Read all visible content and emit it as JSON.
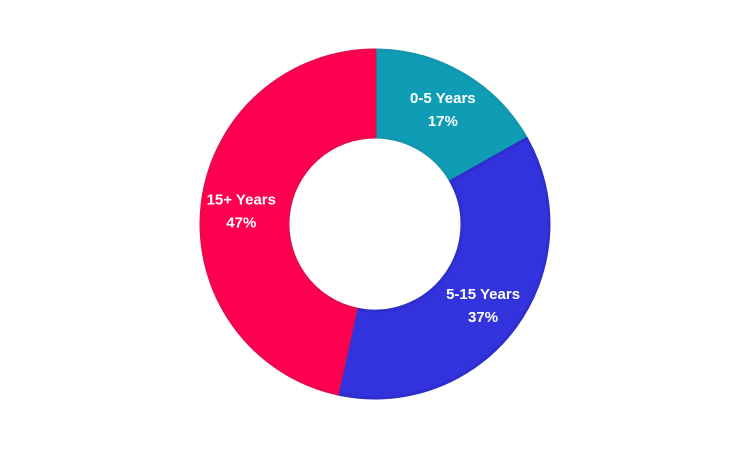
{
  "chart_data": {
    "type": "pie",
    "donut": true,
    "start_angle_deg": 0,
    "direction": "clockwise",
    "slices": [
      {
        "label": "0-5 Years",
        "value": 17,
        "value_label": "17%",
        "color": "#0E9DB5",
        "stroke": "#1496AE"
      },
      {
        "label": "5-15 Years",
        "value": 37,
        "value_label": "37%",
        "color": "#3333DD",
        "stroke": "#2E2ECC"
      },
      {
        "label": "15+ Years",
        "value": 47,
        "value_label": "47%",
        "color": "#FF0050",
        "stroke": "#EC084D"
      }
    ],
    "title": "",
    "legend": "none"
  }
}
